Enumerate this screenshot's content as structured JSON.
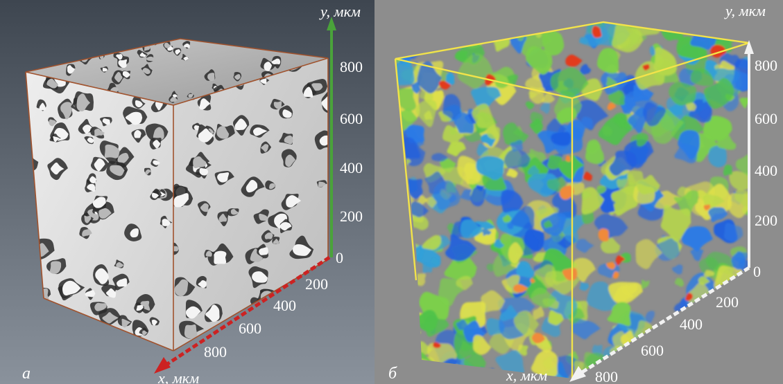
{
  "panels": [
    {
      "letter": "а",
      "x_axis": {
        "label": "x, мкм",
        "ticks": [
          "200",
          "400",
          "600",
          "800"
        ]
      },
      "y_axis": {
        "label": "y, мкм",
        "ticks": [
          "0",
          "200",
          "400",
          "600",
          "800"
        ]
      },
      "colors": {
        "background_top": "#3e4650",
        "background_bottom": "#8a929c",
        "edges": "#a0522d",
        "x_arrow": "#cc2222",
        "y_arrow": "#4aa33a",
        "solid": "#e6e6e6"
      }
    },
    {
      "letter": "б",
      "x_axis": {
        "label": "x, мкм",
        "ticks": [
          "200",
          "400",
          "600",
          "800"
        ]
      },
      "y_axis": {
        "label": "y, мкм",
        "ticks": [
          "0",
          "200",
          "400",
          "600",
          "800"
        ]
      },
      "colors": {
        "background": "#8d8d8d",
        "edges": "#f2e34a",
        "axes": "#f2f2f2",
        "low": "#1f5fe0",
        "mid": "#4fc24a",
        "high": "#e23a1c"
      }
    }
  ]
}
